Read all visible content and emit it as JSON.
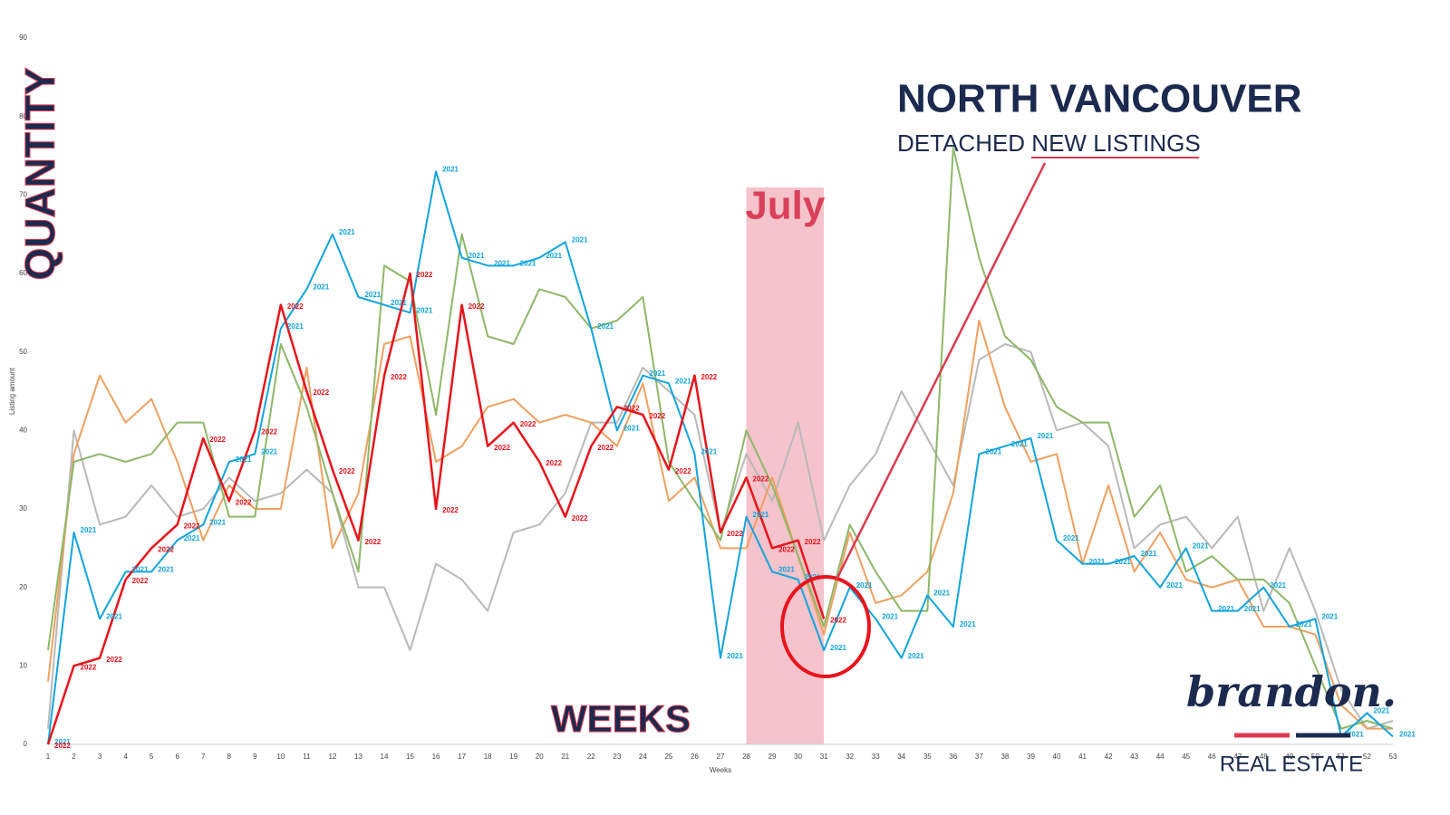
{
  "chart_data": {
    "type": "line",
    "title": "NORTH VANCOUVER",
    "subtitle": "DETACHED NEW LISTINGS",
    "y_label": "Listing amount",
    "x_label": "Weeks",
    "y_annotation": "QUANTITY",
    "x_annotation": "WEEKS",
    "highlight": {
      "label": "July",
      "from": 28,
      "to": 31
    },
    "brand": {
      "name": "brandon.",
      "tagline": "REAL ESTATE"
    },
    "categories": [
      1,
      2,
      3,
      4,
      5,
      6,
      7,
      8,
      9,
      10,
      11,
      12,
      13,
      14,
      15,
      16,
      17,
      18,
      19,
      20,
      21,
      22,
      23,
      24,
      25,
      26,
      27,
      28,
      29,
      30,
      31,
      32,
      33,
      34,
      35,
      36,
      37,
      38,
      39,
      40,
      41,
      42,
      43,
      44,
      45,
      46,
      47,
      48,
      49,
      50,
      51,
      52,
      53
    ],
    "ylim": [
      0,
      90
    ],
    "yticks": [
      0,
      10,
      20,
      30,
      40,
      50,
      60,
      70,
      80,
      90
    ],
    "series": [
      {
        "color": "#b9b9b9",
        "values": [
          2,
          40,
          28,
          29,
          33,
          29,
          30,
          34,
          31,
          32,
          35,
          32,
          20,
          20,
          12,
          23,
          21,
          17,
          27,
          28,
          32,
          41,
          41,
          48,
          45,
          42,
          27,
          37,
          31,
          41,
          26,
          33,
          37,
          45,
          39,
          33,
          49,
          51,
          50,
          40,
          41,
          38,
          25,
          28,
          29,
          25,
          29,
          17,
          25,
          17,
          7,
          2,
          3
        ]
      },
      {
        "color": "#f0a060",
        "values": [
          8,
          37,
          47,
          41,
          44,
          36,
          26,
          33,
          30,
          30,
          48,
          25,
          32,
          51,
          52,
          36,
          38,
          43,
          44,
          41,
          42,
          41,
          38,
          46,
          31,
          34,
          25,
          25,
          34,
          24,
          14,
          27,
          18,
          19,
          22,
          32,
          54,
          43,
          36,
          37,
          23,
          33,
          22,
          27,
          21,
          20,
          21,
          15,
          15,
          14,
          5,
          2,
          2
        ]
      },
      {
        "color": "#8db868",
        "values": [
          12,
          36,
          37,
          36,
          37,
          41,
          41,
          29,
          29,
          51,
          43,
          32,
          22,
          61,
          59,
          42,
          65,
          52,
          51,
          58,
          57,
          53,
          54,
          57,
          36,
          31,
          26,
          40,
          33,
          24,
          15,
          28,
          22,
          17,
          17,
          76,
          62,
          52,
          49,
          43,
          41,
          41,
          29,
          33,
          22,
          24,
          21,
          21,
          18,
          10,
          2,
          3,
          2
        ]
      },
      {
        "name": "2021",
        "color": "#12a4de",
        "values": [
          0,
          27,
          16,
          22,
          22,
          26,
          28,
          36,
          37,
          53,
          58,
          65,
          57,
          56,
          55,
          73,
          62,
          61,
          61,
          62,
          64,
          53,
          40,
          47,
          46,
          37,
          11,
          29,
          22,
          21,
          12,
          20,
          16,
          11,
          19,
          15,
          37,
          38,
          39,
          26,
          23,
          23,
          24,
          20,
          25,
          17,
          17,
          20,
          15,
          16,
          1,
          4,
          1
        ]
      },
      {
        "name": "2022",
        "color": "#e8141b",
        "values": [
          0,
          10,
          11,
          21,
          25,
          28,
          39,
          31,
          40,
          56,
          45,
          35,
          26,
          47,
          60,
          30,
          56,
          38,
          41,
          36,
          29,
          38,
          43,
          42,
          35,
          47,
          27,
          34,
          25,
          26,
          16,
          null,
          null,
          null,
          null,
          null,
          null,
          null,
          null,
          null,
          null,
          null,
          null,
          null,
          null,
          null,
          null,
          null,
          null,
          null,
          null,
          null,
          null
        ]
      }
    ]
  }
}
